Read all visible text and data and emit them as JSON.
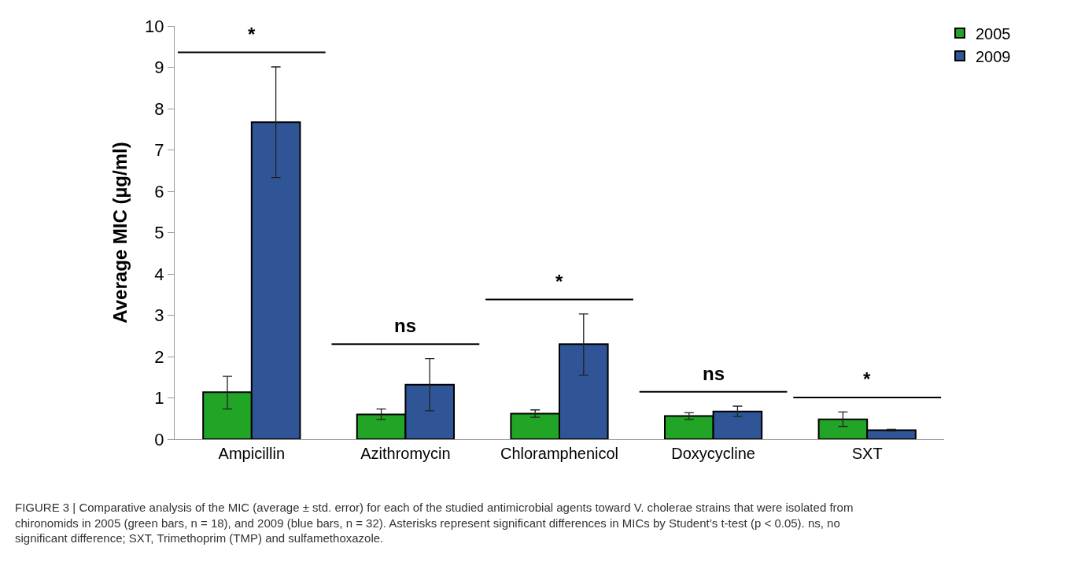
{
  "chart_data": {
    "type": "bar",
    "ylabel": "Average MIC (µg/ml)",
    "categories": [
      "Ampicillin",
      "Azithromycin",
      "Chloramphenicol",
      "Doxycycline",
      "SXT"
    ],
    "series": [
      {
        "name": "2005",
        "color": "#22a426",
        "values": [
          1.14,
          0.6,
          0.62,
          0.56,
          0.48
        ],
        "errors": [
          [
            0.73,
            1.52
          ],
          [
            0.48,
            0.73
          ],
          [
            0.53,
            0.71
          ],
          [
            0.48,
            0.64
          ],
          [
            0.31,
            0.66
          ]
        ]
      },
      {
        "name": "2009",
        "color": "#2f5597",
        "values": [
          7.67,
          1.32,
          2.3,
          0.67,
          0.22
        ],
        "errors": [
          [
            6.33,
            9.01
          ],
          [
            0.69,
            1.95
          ],
          [
            1.55,
            3.03
          ],
          [
            0.55,
            0.8
          ],
          [
            0.2,
            0.24
          ]
        ]
      }
    ],
    "ylim": [
      0,
      10
    ],
    "yticks": [
      0,
      1,
      2,
      3,
      4,
      5,
      6,
      7,
      8,
      9,
      10
    ],
    "legend": "top right",
    "annotations": [
      "*",
      "ns",
      "*",
      "ns",
      "*",
      "FIGURE 3 | Comparative analysis of the MIC (average ± std. error) for each of the studied antimicrobial agents toward V. cholerae strains that were isolated from chironomids in 2005 (green bars, n = 18), and 2009 (blue bars, n = 32). Asterisks represent significant differences in MICs by Student’s t-test (p < 0.05). ns, no significant difference; SXT, Trimethoprim (TMP) and sulfamethoxazole."
    ]
  }
}
